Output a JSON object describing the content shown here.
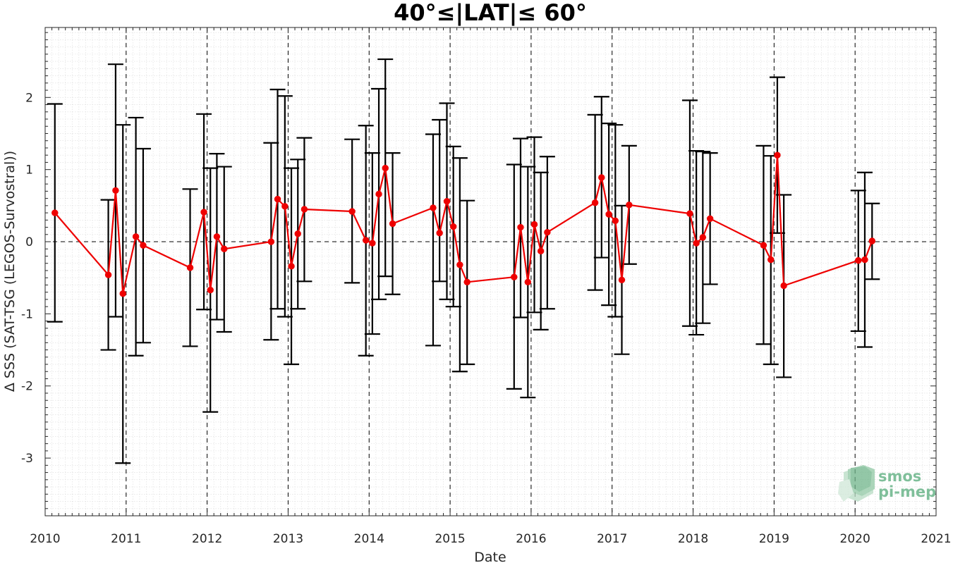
{
  "chart_data": {
    "type": "line",
    "title": "40°≤|LAT|≤ 60°",
    "xlabel": "Date",
    "ylabel": "Δ SSS (SAT-TSG (LEGOS-Survostral))",
    "xlim": [
      2010,
      2021
    ],
    "ylim": [
      -3.8,
      2.97
    ],
    "x_ticks": [
      "2010",
      "2011",
      "2012",
      "2013",
      "2014",
      "2015",
      "2016",
      "2017",
      "2018",
      "2019",
      "2020",
      "2021"
    ],
    "y_ticks": [
      "-3",
      "-2",
      "-1",
      "0",
      "1",
      "2"
    ],
    "grid": true,
    "year_dividers": [
      2011,
      2012,
      2013,
      2014,
      2015,
      2016,
      2017,
      2018,
      2019,
      2020
    ],
    "zero_line": 0,
    "series": [
      {
        "color": "#ee0000",
        "marker": "circle",
        "points": [
          {
            "x": 2010.12,
            "y": 0.4,
            "lo": -1.11,
            "hi": 1.91
          },
          {
            "x": 2010.78,
            "y": -0.46,
            "lo": -1.5,
            "hi": 0.58
          },
          {
            "x": 2010.87,
            "y": 0.71,
            "lo": -1.04,
            "hi": 2.46
          },
          {
            "x": 2010.96,
            "y": -0.72,
            "lo": -3.07,
            "hi": 1.62
          },
          {
            "x": 2011.12,
            "y": 0.07,
            "lo": -1.58,
            "hi": 1.72
          },
          {
            "x": 2011.21,
            "y": -0.05,
            "lo": -1.4,
            "hi": 1.29
          },
          {
            "x": 2011.79,
            "y": -0.36,
            "lo": -1.45,
            "hi": 0.73
          },
          {
            "x": 2011.96,
            "y": 0.41,
            "lo": -0.94,
            "hi": 1.77
          },
          {
            "x": 2012.04,
            "y": -0.67,
            "lo": -2.36,
            "hi": 1.02
          },
          {
            "x": 2012.12,
            "y": 0.07,
            "lo": -1.08,
            "hi": 1.22
          },
          {
            "x": 2012.21,
            "y": -0.1,
            "lo": -1.25,
            "hi": 1.04
          },
          {
            "x": 2012.79,
            "y": 0.0,
            "lo": -1.36,
            "hi": 1.37
          },
          {
            "x": 2012.87,
            "y": 0.59,
            "lo": -0.93,
            "hi": 2.11
          },
          {
            "x": 2012.96,
            "y": 0.49,
            "lo": -1.04,
            "hi": 2.02
          },
          {
            "x": 2013.04,
            "y": -0.34,
            "lo": -1.7,
            "hi": 1.02
          },
          {
            "x": 2013.12,
            "y": 0.11,
            "lo": -0.93,
            "hi": 1.14
          },
          {
            "x": 2013.2,
            "y": 0.45,
            "lo": -0.55,
            "hi": 1.44
          },
          {
            "x": 2013.79,
            "y": 0.42,
            "lo": -0.57,
            "hi": 1.42
          },
          {
            "x": 2013.96,
            "y": 0.02,
            "lo": -1.58,
            "hi": 1.61
          },
          {
            "x": 2014.04,
            "y": -0.02,
            "lo": -1.28,
            "hi": 1.23
          },
          {
            "x": 2014.12,
            "y": 0.66,
            "lo": -0.8,
            "hi": 2.12
          },
          {
            "x": 2014.2,
            "y": 1.02,
            "lo": -0.48,
            "hi": 2.53
          },
          {
            "x": 2014.29,
            "y": 0.25,
            "lo": -0.73,
            "hi": 1.23
          },
          {
            "x": 2014.79,
            "y": 0.47,
            "lo": -1.44,
            "hi": 1.49
          },
          {
            "x": 2014.87,
            "y": 0.12,
            "lo": -0.55,
            "hi": 1.69
          },
          {
            "x": 2014.96,
            "y": 0.56,
            "lo": -0.8,
            "hi": 1.92
          },
          {
            "x": 2015.04,
            "y": 0.21,
            "lo": -0.9,
            "hi": 1.32
          },
          {
            "x": 2015.12,
            "y": -0.32,
            "lo": -1.8,
            "hi": 1.16
          },
          {
            "x": 2015.21,
            "y": -0.56,
            "lo": -1.7,
            "hi": 0.57
          },
          {
            "x": 2015.79,
            "y": -0.49,
            "lo": -2.04,
            "hi": 1.07
          },
          {
            "x": 2015.87,
            "y": 0.2,
            "lo": -1.05,
            "hi": 1.43
          },
          {
            "x": 2015.96,
            "y": -0.56,
            "lo": -2.16,
            "hi": 1.04
          },
          {
            "x": 2016.04,
            "y": 0.24,
            "lo": -0.98,
            "hi": 1.45
          },
          {
            "x": 2016.12,
            "y": -0.13,
            "lo": -1.22,
            "hi": 0.96
          },
          {
            "x": 2016.2,
            "y": 0.13,
            "lo": -0.93,
            "hi": 1.18
          },
          {
            "x": 2016.79,
            "y": 0.54,
            "lo": -0.67,
            "hi": 1.76
          },
          {
            "x": 2016.87,
            "y": 0.89,
            "lo": -0.22,
            "hi": 2.01
          },
          {
            "x": 2016.96,
            "y": 0.38,
            "lo": -0.88,
            "hi": 1.64
          },
          {
            "x": 2017.04,
            "y": 0.29,
            "lo": -1.04,
            "hi": 1.62
          },
          {
            "x": 2017.12,
            "y": -0.53,
            "lo": -1.56,
            "hi": 0.5
          },
          {
            "x": 2017.21,
            "y": 0.51,
            "lo": -0.31,
            "hi": 1.33
          },
          {
            "x": 2017.96,
            "y": 0.39,
            "lo": -1.17,
            "hi": 1.96
          },
          {
            "x": 2018.04,
            "y": -0.02,
            "lo": -1.29,
            "hi": 1.26
          },
          {
            "x": 2018.12,
            "y": 0.06,
            "lo": -1.13,
            "hi": 1.25
          },
          {
            "x": 2018.21,
            "y": 0.32,
            "lo": -0.59,
            "hi": 1.23
          },
          {
            "x": 2018.87,
            "y": -0.05,
            "lo": -1.42,
            "hi": 1.33
          },
          {
            "x": 2018.96,
            "y": -0.25,
            "lo": -1.7,
            "hi": 1.19
          },
          {
            "x": 2019.04,
            "y": 1.2,
            "lo": 0.12,
            "hi": 2.28
          },
          {
            "x": 2019.12,
            "y": -0.61,
            "lo": -1.88,
            "hi": 0.65
          },
          {
            "x": 2020.04,
            "y": -0.26,
            "lo": -1.24,
            "hi": 0.71
          },
          {
            "x": 2020.12,
            "y": -0.25,
            "lo": -1.46,
            "hi": 0.96
          },
          {
            "x": 2020.21,
            "y": 0.01,
            "lo": -0.52,
            "hi": 0.53
          }
        ]
      }
    ]
  },
  "logo": {
    "line1": "smos",
    "line2": "pi-mep"
  },
  "colors": {
    "series": "#ee0000",
    "errorbar": "#000000",
    "grid_minor": "#dcdcdc",
    "axis": "#262626"
  }
}
